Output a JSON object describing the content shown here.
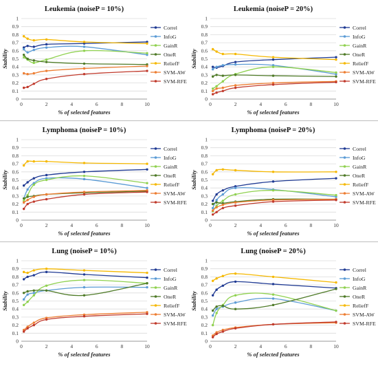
{
  "series_style": [
    {
      "color": "#1f3a93"
    },
    {
      "color": "#5b9bd5"
    },
    {
      "color": "#8fd14f"
    },
    {
      "color": "#4e7a27"
    },
    {
      "color": "#f5b800"
    },
    {
      "color": "#ed7d31"
    },
    {
      "color": "#c0392b"
    },
    {
      "color": "#7f5a1e"
    }
  ],
  "x_tick_labels": [
    "0",
    "2",
    "4",
    "6",
    "8",
    "10"
  ],
  "y_tick_labels": [
    "0",
    "0.1",
    "0.2",
    "0.3",
    "0.4",
    "0.5",
    "0.6",
    "0.7",
    "0.8",
    "0.9",
    "1"
  ],
  "chart_data": [
    {
      "type": "line",
      "title": "Leukemia (noiseP = 10%)",
      "xlabel": "% of selected features",
      "ylabel": "Stability",
      "xlim": [
        0,
        10
      ],
      "ylim": [
        0,
        1
      ],
      "grid": true,
      "legend": "right",
      "x": [
        0.2,
        0.5,
        1,
        2,
        5,
        10
      ],
      "series": [
        {
          "name": "Correl",
          "style": 0,
          "values": [
            0.64,
            0.66,
            0.65,
            0.68,
            0.69,
            0.71
          ]
        },
        {
          "name": "InfoG",
          "style": 1,
          "values": [
            0.62,
            0.58,
            0.61,
            0.64,
            0.65,
            0.55
          ]
        },
        {
          "name": "GainR",
          "style": 2,
          "values": [
            0.52,
            0.49,
            0.45,
            0.49,
            0.6,
            0.57
          ]
        },
        {
          "name": "OneR",
          "style": 3,
          "values": [
            0.55,
            0.5,
            0.48,
            0.46,
            0.44,
            0.43
          ]
        },
        {
          "name": "ReliefF",
          "style": 4,
          "values": [
            0.78,
            0.75,
            0.73,
            0.74,
            0.71,
            0.69
          ]
        },
        {
          "name": "SVM-AW",
          "style": 5,
          "values": [
            0.32,
            0.31,
            0.32,
            0.35,
            0.38,
            0.41
          ]
        },
        {
          "name": "SVM-RFE",
          "style": 6,
          "values": [
            0.14,
            0.15,
            0.19,
            0.25,
            0.31,
            0.35
          ]
        }
      ]
    },
    {
      "type": "line",
      "title": "Leukemia (noiseP = 20%)",
      "xlabel": "% of selected features",
      "ylabel": "Stability",
      "xlim": [
        0,
        10
      ],
      "ylim": [
        0,
        1
      ],
      "grid": true,
      "legend": "right",
      "x": [
        0.2,
        0.5,
        1,
        2,
        5,
        10
      ],
      "series": [
        {
          "name": "Correl",
          "style": 0,
          "values": [
            0.4,
            0.39,
            0.41,
            0.46,
            0.49,
            0.52
          ]
        },
        {
          "name": "InfoG",
          "style": 1,
          "values": [
            0.37,
            0.4,
            0.42,
            0.43,
            0.42,
            0.31
          ]
        },
        {
          "name": "GainR",
          "style": 2,
          "values": [
            0.13,
            0.16,
            0.22,
            0.31,
            0.4,
            0.33
          ]
        },
        {
          "name": "OneR",
          "style": 3,
          "values": [
            0.28,
            0.3,
            0.29,
            0.3,
            0.29,
            0.28
          ]
        },
        {
          "name": "ReliefF",
          "style": 4,
          "values": [
            0.62,
            0.59,
            0.56,
            0.56,
            0.52,
            0.49
          ]
        },
        {
          "name": "SVM-AW",
          "style": 5,
          "values": [
            0.1,
            0.13,
            0.14,
            0.17,
            0.2,
            0.22
          ]
        },
        {
          "name": "SVM-RFE",
          "style": 6,
          "values": [
            0.06,
            0.08,
            0.1,
            0.14,
            0.18,
            0.21
          ]
        }
      ]
    },
    {
      "type": "line",
      "title": "Lymphoma (noiseP = 10%)",
      "xlabel": "% of selected features",
      "ylabel": "Stability",
      "xlim": [
        0,
        10
      ],
      "ylim": [
        0,
        1
      ],
      "grid": true,
      "legend": "right",
      "x": [
        0.2,
        0.5,
        1,
        2,
        5,
        10
      ],
      "series": [
        {
          "name": "Correl",
          "style": 0,
          "values": [
            0.43,
            0.47,
            0.52,
            0.56,
            0.6,
            0.63
          ]
        },
        {
          "name": "InfoG",
          "style": 1,
          "values": [
            0.27,
            0.38,
            0.46,
            0.52,
            0.51,
            0.4
          ]
        },
        {
          "name": "GainR",
          "style": 2,
          "values": [
            0.24,
            0.31,
            0.44,
            0.5,
            0.55,
            0.46
          ]
        },
        {
          "name": "OneR",
          "style": 3,
          "values": [
            0.27,
            0.29,
            0.3,
            0.32,
            0.34,
            0.36
          ]
        },
        {
          "name": "ReliefF",
          "style": 4,
          "values": [
            0.68,
            0.73,
            0.73,
            0.73,
            0.71,
            0.7
          ]
        },
        {
          "name": "SVM-AW",
          "style": 5,
          "values": [
            0.22,
            0.25,
            0.29,
            0.32,
            0.35,
            0.37
          ]
        },
        {
          "name": "SVM-RFE",
          "style": 6,
          "values": [
            0.14,
            0.2,
            0.23,
            0.26,
            0.32,
            0.35
          ]
        }
      ]
    },
    {
      "type": "line",
      "title": "Lymphoma (noiseP = 20%)",
      "xlabel": "% of selected features",
      "ylabel": "Stability",
      "xlim": [
        0,
        10
      ],
      "ylim": [
        0,
        1
      ],
      "grid": true,
      "legend": "right",
      "x": [
        0.2,
        0.5,
        1,
        2,
        5,
        10
      ],
      "series": [
        {
          "name": "Correl",
          "style": 0,
          "values": [
            0.24,
            0.32,
            0.37,
            0.42,
            0.48,
            0.52
          ]
        },
        {
          "name": "InfoG",
          "style": 1,
          "values": [
            0.15,
            0.25,
            0.32,
            0.4,
            0.38,
            0.29
          ]
        },
        {
          "name": "GainR",
          "style": 2,
          "values": [
            0.11,
            0.18,
            0.24,
            0.32,
            0.37,
            0.31
          ]
        },
        {
          "name": "OneR",
          "style": 3,
          "values": [
            0.2,
            0.22,
            0.21,
            0.23,
            0.26,
            0.26
          ]
        },
        {
          "name": "ReliefF",
          "style": 4,
          "values": [
            0.57,
            0.62,
            0.63,
            0.62,
            0.6,
            0.6
          ]
        },
        {
          "name": "SVM-AW",
          "style": 5,
          "values": [
            0.12,
            0.16,
            0.19,
            0.22,
            0.25,
            0.26
          ]
        },
        {
          "name": "SVM-RFE",
          "style": 6,
          "values": [
            0.07,
            0.1,
            0.15,
            0.18,
            0.23,
            0.25
          ]
        }
      ]
    },
    {
      "type": "line",
      "title": "Lung (noiseP = 10%)",
      "xlabel": "% of selected features",
      "ylabel": "Stability",
      "xlim": [
        0,
        10
      ],
      "ylim": [
        0,
        1
      ],
      "grid": true,
      "legend": "right",
      "x": [
        0.2,
        0.5,
        1,
        2,
        5,
        10
      ],
      "series": [
        {
          "name": "Correl",
          "style": 0,
          "values": [
            0.77,
            0.8,
            0.82,
            0.86,
            0.83,
            0.79
          ]
        },
        {
          "name": "InfoG",
          "style": 1,
          "values": [
            0.52,
            0.58,
            0.6,
            0.63,
            0.67,
            0.67
          ]
        },
        {
          "name": "GainR",
          "style": 2,
          "values": [
            0.45,
            0.49,
            0.57,
            0.69,
            0.76,
            0.72
          ]
        },
        {
          "name": "OneR",
          "style": 3,
          "values": [
            0.6,
            0.62,
            0.63,
            0.63,
            0.57,
            0.72
          ]
        },
        {
          "name": "ReliefF",
          "style": 4,
          "values": [
            0.86,
            0.85,
            0.88,
            0.9,
            0.88,
            0.85
          ]
        },
        {
          "name": "SVM-AW",
          "style": 5,
          "values": [
            0.14,
            0.18,
            0.23,
            0.29,
            0.33,
            0.36
          ]
        },
        {
          "name": "SVM-RFE",
          "style": 6,
          "values": [
            0.12,
            0.16,
            0.2,
            0.27,
            0.31,
            0.34
          ]
        }
      ]
    },
    {
      "type": "line",
      "title": "Lung (noiseP = 20%)",
      "xlabel": "% of selected features",
      "ylabel": "Stability",
      "xlim": [
        0,
        10
      ],
      "ylim": [
        0,
        1
      ],
      "grid": true,
      "legend": "right",
      "x": [
        0.2,
        0.5,
        1,
        2,
        5,
        10
      ],
      "series": [
        {
          "name": "Correl",
          "style": 0,
          "values": [
            0.57,
            0.64,
            0.69,
            0.74,
            0.71,
            0.66
          ]
        },
        {
          "name": "InfoG",
          "style": 1,
          "values": [
            0.32,
            0.4,
            0.43,
            0.48,
            0.53,
            0.38
          ]
        },
        {
          "name": "GainR",
          "style": 2,
          "values": [
            0.2,
            0.35,
            0.45,
            0.57,
            0.58,
            0.38
          ]
        },
        {
          "name": "OneR",
          "style": 3,
          "values": [
            0.38,
            0.43,
            0.44,
            0.4,
            0.45,
            0.65
          ]
        },
        {
          "name": "ReliefF",
          "style": 4,
          "values": [
            0.75,
            0.78,
            0.81,
            0.84,
            0.8,
            0.73
          ]
        },
        {
          "name": "SVM-AW",
          "style": 5,
          "values": [
            0.07,
            0.11,
            0.14,
            0.17,
            0.21,
            0.23
          ]
        },
        {
          "name": "SVM-RFE",
          "style": 6,
          "values": [
            0.05,
            0.09,
            0.12,
            0.16,
            0.21,
            0.24
          ]
        }
      ]
    }
  ]
}
